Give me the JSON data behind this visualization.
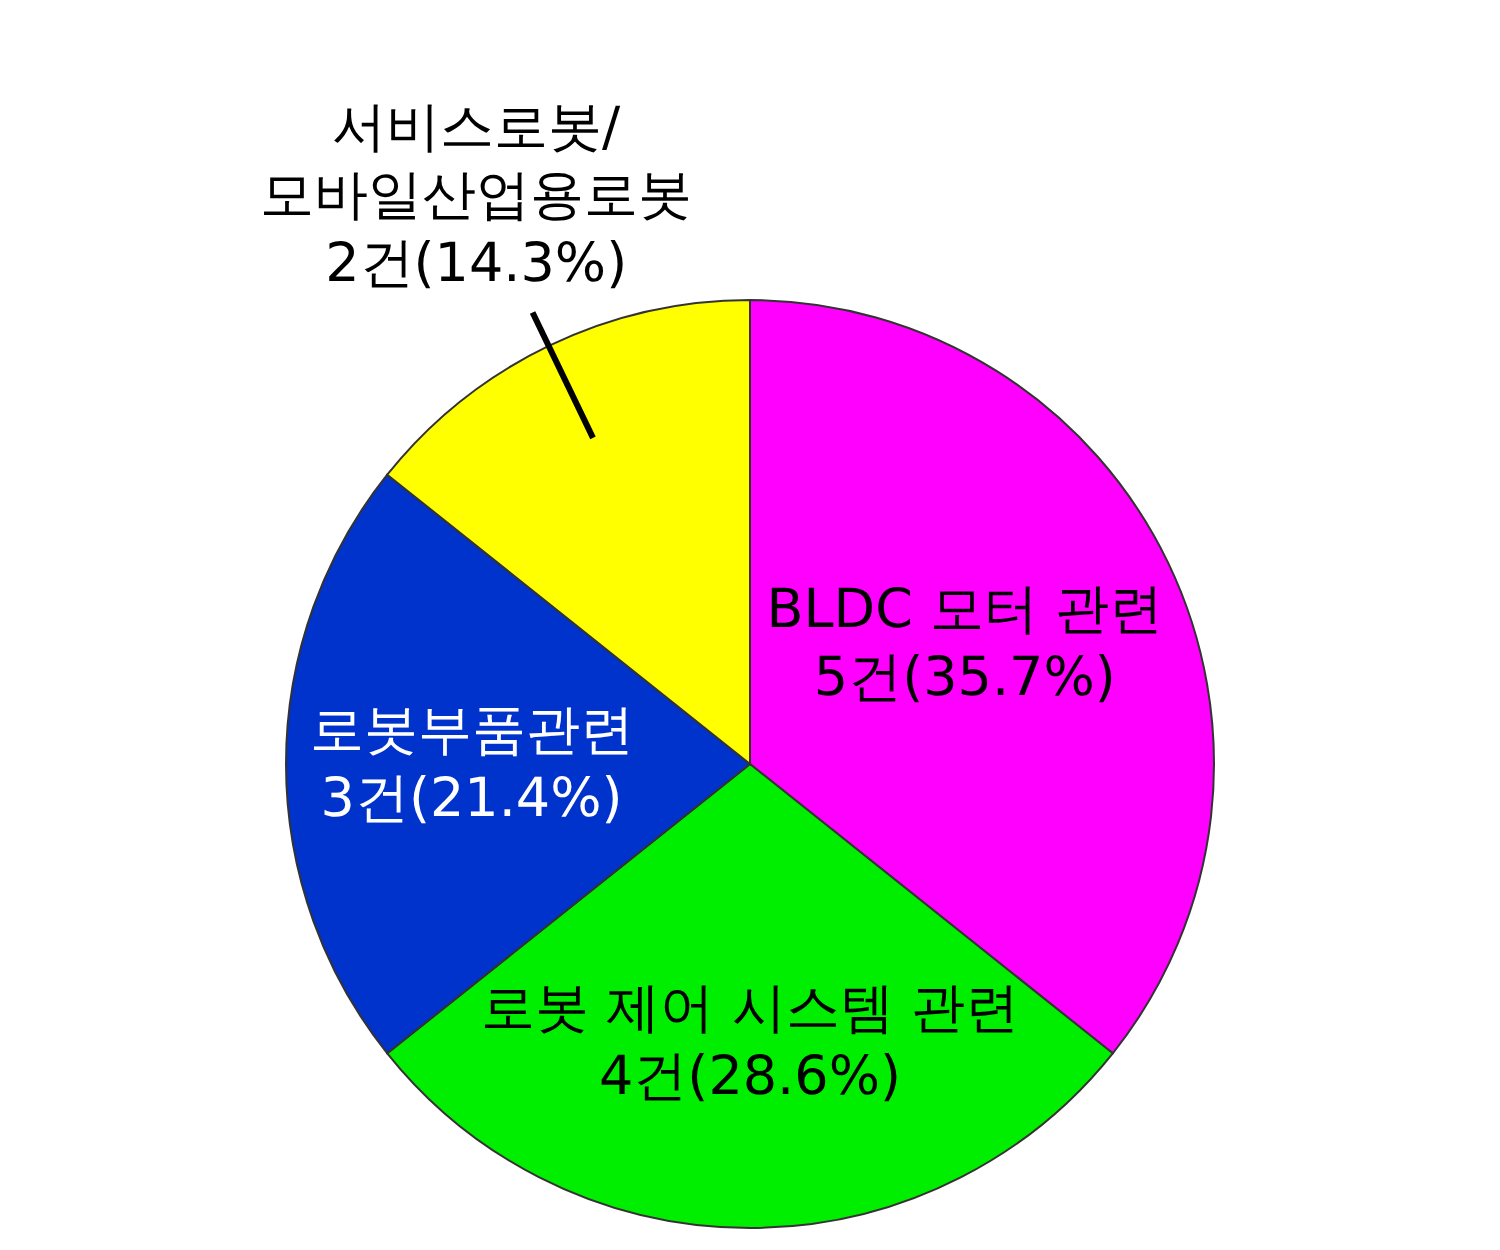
{
  "chart_data": {
    "type": "pie",
    "categories": [
      "BLDC 모터 관련",
      "로봇 제어 시스템 관련",
      "로봇부품관련",
      "서비스로봇/\n모바일산업용로봇"
    ],
    "values": [
      5,
      4,
      3,
      2
    ],
    "value_labels": [
      "5건(35.7%)",
      "4건(28.6%)",
      "3건(21.4%)",
      "2건(14.3%)"
    ],
    "colors": [
      "#ff00ff",
      "#00ee00",
      "#0033cc",
      "#ffff00"
    ]
  }
}
